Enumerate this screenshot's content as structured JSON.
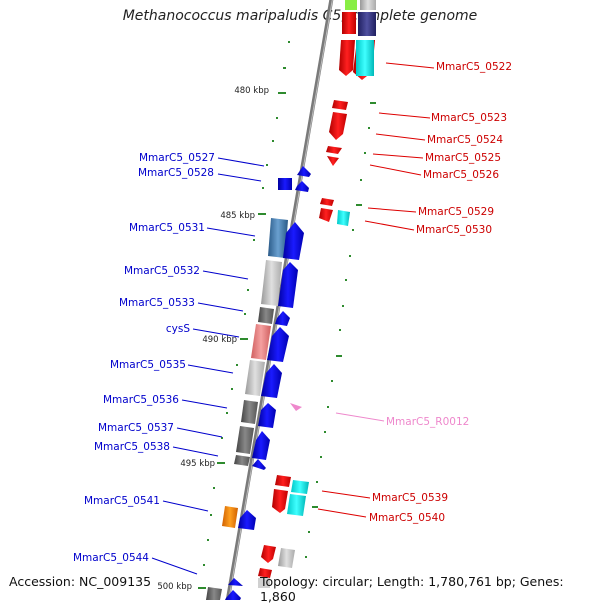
{
  "title": "Methanococcus maripaludis C5, complete genome",
  "accession": "Accession: NC_009135",
  "summary": "Topology: circular; Length: 1,780,761 bp; Genes: 1,860",
  "scale_labels": [
    "480 kbp",
    "485 kbp",
    "490 kbp",
    "495 kbp",
    "500 kbp"
  ],
  "left_labels": [
    "MmarC5_0527",
    "MmarC5_0528",
    "MmarC5_0531",
    "MmarC5_0532",
    "MmarC5_0533",
    "cysS",
    "MmarC5_0535",
    "MmarC5_0536",
    "MmarC5_0537",
    "MmarC5_0538",
    "MmarC5_0541",
    "MmarC5_0544"
  ],
  "right_labels": [
    "MmarC5_0522",
    "MmarC5_0523",
    "MmarC5_0524",
    "MmarC5_0525",
    "MmarC5_0526",
    "MmarC5_0529",
    "MmarC5_0530",
    "MmarC5_R0012",
    "MmarC5_0539",
    "MmarC5_0540"
  ],
  "colors": {
    "reverse": "#ee0000",
    "forward": "#0000ee",
    "rna": "#ee88cc"
  }
}
